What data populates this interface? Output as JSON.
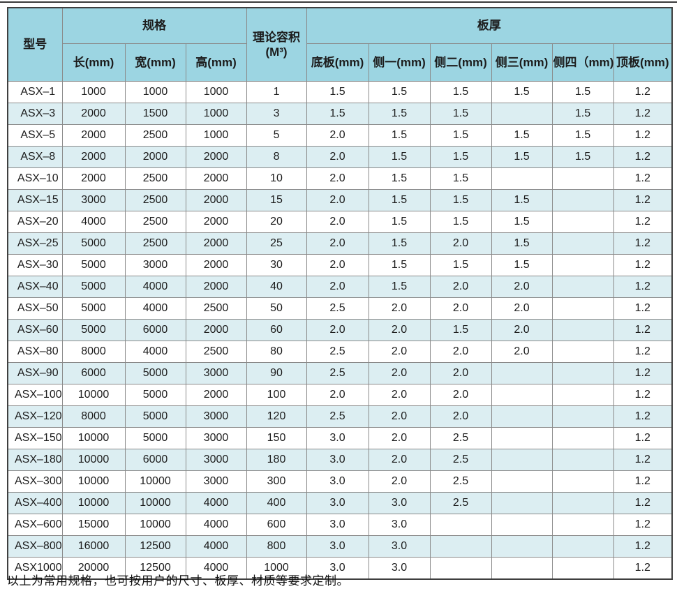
{
  "page": {
    "footer_note": "以上为常用规格，也可按用户的尺寸、板厚、材质等要求定制。"
  },
  "table": {
    "colors": {
      "header_bg": "#9cd5e2",
      "stripe_bg": "#dceef2",
      "grid_line": "#8a8a8a",
      "outer_border": "#3f3f3f",
      "text": "#1c1c1c"
    },
    "header": {
      "model": "型号",
      "spec_group": "规格",
      "volume_line1": "理论容积",
      "volume_line2": "(M³)",
      "thickness_group": "板厚",
      "spec_columns": [
        "长(mm)",
        "宽(mm)",
        "高(mm)"
      ],
      "thickness_columns": [
        "底板(mm)",
        "侧一(mm)",
        "侧二(mm)",
        "侧三(mm)",
        "侧四（mm)",
        "顶板(mm)"
      ]
    },
    "rows": [
      [
        "ASX–1",
        "1000",
        "1000",
        "1000",
        "1",
        "1.5",
        "1.5",
        "1.5",
        "1.5",
        "1.5",
        "1.2"
      ],
      [
        "ASX–3",
        "2000",
        "1500",
        "1000",
        "3",
        "1.5",
        "1.5",
        "1.5",
        "",
        "1.5",
        "1.2"
      ],
      [
        "ASX–5",
        "2000",
        "2500",
        "1000",
        "5",
        "2.0",
        "1.5",
        "1.5",
        "1.5",
        "1.5",
        "1.2"
      ],
      [
        "ASX–8",
        "2000",
        "2000",
        "2000",
        "8",
        "2.0",
        "1.5",
        "1.5",
        "1.5",
        "1.5",
        "1.2"
      ],
      [
        "ASX–10",
        "2000",
        "2500",
        "2000",
        "10",
        "2.0",
        "1.5",
        "1.5",
        "",
        "",
        "1.2"
      ],
      [
        "ASX–15",
        "3000",
        "2500",
        "2000",
        "15",
        "2.0",
        "1.5",
        "1.5",
        "1.5",
        "",
        "1.2"
      ],
      [
        "ASX–20",
        "4000",
        "2500",
        "2000",
        "20",
        "2.0",
        "1.5",
        "1.5",
        "1.5",
        "",
        "1.2"
      ],
      [
        "ASX–25",
        "5000",
        "2500",
        "2000",
        "25",
        "2.0",
        "1.5",
        "2.0",
        "1.5",
        "",
        "1.2"
      ],
      [
        "ASX–30",
        "5000",
        "3000",
        "2000",
        "30",
        "2.0",
        "1.5",
        "1.5",
        "1.5",
        "",
        "1.2"
      ],
      [
        "ASX–40",
        "5000",
        "4000",
        "2000",
        "40",
        "2.0",
        "1.5",
        "2.0",
        "2.0",
        "",
        "1.2"
      ],
      [
        "ASX–50",
        "5000",
        "4000",
        "2500",
        "50",
        "2.5",
        "2.0",
        "2.0",
        "2.0",
        "",
        "1.2"
      ],
      [
        "ASX–60",
        "5000",
        "6000",
        "2000",
        "60",
        "2.0",
        "2.0",
        "1.5",
        "2.0",
        "",
        "1.2"
      ],
      [
        "ASX–80",
        "8000",
        "4000",
        "2500",
        "80",
        "2.5",
        "2.0",
        "2.0",
        "2.0",
        "",
        "1.2"
      ],
      [
        "ASX–90",
        "6000",
        "5000",
        "3000",
        "90",
        "2.5",
        "2.0",
        "2.0",
        "",
        "",
        "1.2"
      ],
      [
        "ASX–100",
        "10000",
        "5000",
        "2000",
        "100",
        "2.0",
        "2.0",
        "2.0",
        "",
        "",
        "1.2"
      ],
      [
        "ASX–120",
        "8000",
        "5000",
        "3000",
        "120",
        "2.5",
        "2.0",
        "2.0",
        "",
        "",
        "1.2"
      ],
      [
        "ASX–150",
        "10000",
        "5000",
        "3000",
        "150",
        "3.0",
        "2.0",
        "2.5",
        "",
        "",
        "1.2"
      ],
      [
        "ASX–180",
        "10000",
        "6000",
        "3000",
        "180",
        "3.0",
        "2.0",
        "2.5",
        "",
        "",
        "1.2"
      ],
      [
        "ASX–300",
        "10000",
        "10000",
        "3000",
        "300",
        "3.0",
        "2.0",
        "2.5",
        "",
        "",
        "1.2"
      ],
      [
        "ASX–400",
        "10000",
        "10000",
        "4000",
        "400",
        "3.0",
        "3.0",
        "2.5",
        "",
        "",
        "1.2"
      ],
      [
        "ASX–600",
        "15000",
        "10000",
        "4000",
        "600",
        "3.0",
        "3.0",
        "",
        "",
        "",
        "1.2"
      ],
      [
        "ASX–800",
        "16000",
        "12500",
        "4000",
        "800",
        "3.0",
        "3.0",
        "",
        "",
        "",
        "1.2"
      ],
      [
        "ASX1000",
        "20000",
        "12500",
        "4000",
        "1000",
        "3.0",
        "3.0",
        "",
        "",
        "",
        "1.2"
      ]
    ]
  }
}
